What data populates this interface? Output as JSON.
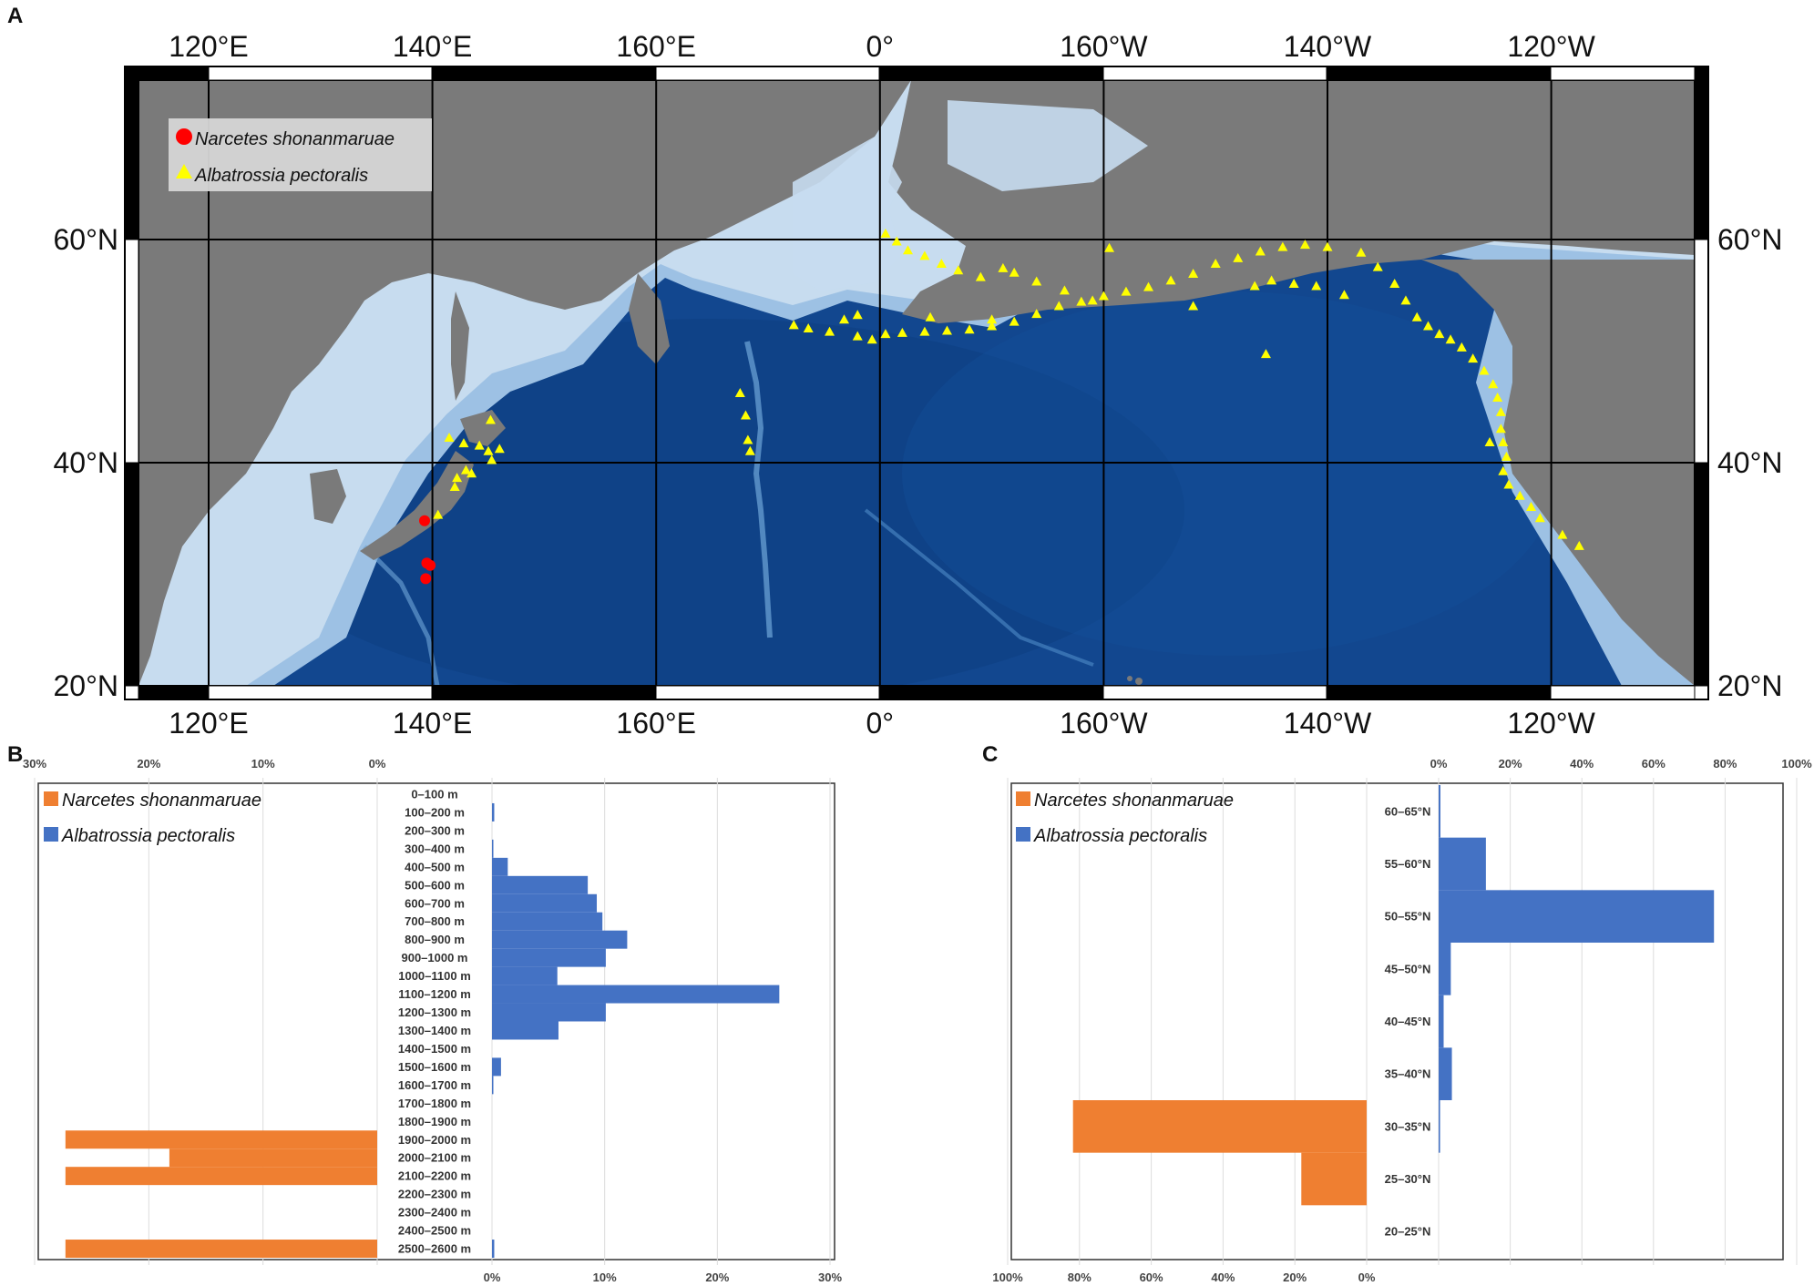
{
  "panels": {
    "a": "A",
    "b": "B",
    "c": "C"
  },
  "colors": {
    "land": "#7a7a7a",
    "ocean_deep": "#12478f",
    "ocean_shelf": "#c7dcef",
    "narcetes": "#ef7f31",
    "albatrossia": "#4472c4",
    "narcetes_map": "#ff0000",
    "albatrossia_map": "#ffff00"
  },
  "chart_data": [
    {
      "type": "map",
      "panel": "A",
      "x_tick_labels": [
        "120°E",
        "140°E",
        "160°E",
        "0°",
        "160°W",
        "140°W",
        "120°W"
      ],
      "y_tick_labels": [
        "60°N",
        "40°N",
        "20°N"
      ],
      "legend": [
        {
          "name": "Narcetes shonanmaruae",
          "marker": "circle",
          "color": "#ff0000"
        },
        {
          "name": "Albatrossia pectoralis",
          "marker": "triangle",
          "color": "#ffff00"
        }
      ],
      "narcetes_points": [
        [
          139.3,
          34.8
        ],
        [
          139.5,
          31.0
        ],
        [
          139.8,
          30.8
        ],
        [
          139.4,
          29.6
        ]
      ],
      "albatrossia_points": [
        [
          141.5,
          42.2
        ],
        [
          142.8,
          41.7
        ],
        [
          144.2,
          41.5
        ],
        [
          145.0,
          41.0
        ],
        [
          146.0,
          41.2
        ],
        [
          145.3,
          40.2
        ],
        [
          143.0,
          39.3
        ],
        [
          142.2,
          38.6
        ],
        [
          142.0,
          37.8
        ],
        [
          143.5,
          39.0
        ],
        [
          140.5,
          35.3
        ],
        [
          145.2,
          43.8
        ],
        [
          167.5,
          46.2
        ],
        [
          168.0,
          44.2
        ],
        [
          168.2,
          42.0
        ],
        [
          168.4,
          41.0
        ],
        [
          172.3,
          52.3
        ],
        [
          173.6,
          52.0
        ],
        [
          175.5,
          51.7
        ],
        [
          176.8,
          52.8
        ],
        [
          178.0,
          51.3
        ],
        [
          179.3,
          51.0
        ],
        [
          178.0,
          53.2
        ],
        [
          -179.5,
          51.5
        ],
        [
          -178.0,
          51.6
        ],
        [
          -176.0,
          51.7
        ],
        [
          -174.0,
          51.8
        ],
        [
          -172.0,
          51.9
        ],
        [
          -170.0,
          52.2
        ],
        [
          -168.0,
          52.6
        ],
        [
          -166.0,
          53.3
        ],
        [
          -164.0,
          54.0
        ],
        [
          -162.0,
          54.4
        ],
        [
          -160.0,
          54.9
        ],
        [
          -158.0,
          55.3
        ],
        [
          -156.0,
          55.7
        ],
        [
          -154.0,
          56.3
        ],
        [
          -152.0,
          56.9
        ],
        [
          -150.0,
          57.8
        ],
        [
          -148.0,
          58.3
        ],
        [
          -146.0,
          58.9
        ],
        [
          -144.0,
          59.3
        ],
        [
          -142.0,
          59.5
        ],
        [
          -140.0,
          59.3
        ],
        [
          -179.5,
          60.5
        ],
        [
          -178.5,
          59.8
        ],
        [
          -177.5,
          59.0
        ],
        [
          -176.0,
          58.5
        ],
        [
          -174.5,
          57.8
        ],
        [
          -173.0,
          57.2
        ],
        [
          -171.0,
          56.6
        ],
        [
          -169.0,
          57.4
        ],
        [
          -168.0,
          57.0
        ],
        [
          -166.0,
          56.2
        ],
        [
          -163.5,
          55.4
        ],
        [
          -159.5,
          59.2
        ],
        [
          -161.0,
          54.5
        ],
        [
          -175.5,
          53.0
        ],
        [
          -170.0,
          52.8
        ],
        [
          -152.0,
          54.0
        ],
        [
          -143.0,
          56.0
        ],
        [
          -141.0,
          55.8
        ],
        [
          -138.5,
          55.0
        ],
        [
          -145.0,
          56.3
        ],
        [
          -146.5,
          55.8
        ],
        [
          -145.5,
          49.7
        ],
        [
          -137.0,
          58.8
        ],
        [
          -135.5,
          57.5
        ],
        [
          -134.0,
          56.0
        ],
        [
          -133.0,
          54.5
        ],
        [
          -132.0,
          53.0
        ],
        [
          -131.0,
          52.2
        ],
        [
          -130.0,
          51.5
        ],
        [
          -129.0,
          51.0
        ],
        [
          -128.0,
          50.3
        ],
        [
          -127.0,
          49.3
        ],
        [
          -126.0,
          48.2
        ],
        [
          -125.2,
          47.0
        ],
        [
          -124.8,
          45.8
        ],
        [
          -124.5,
          44.5
        ],
        [
          -124.5,
          43.0
        ],
        [
          -124.3,
          41.8
        ],
        [
          -124.0,
          40.5
        ],
        [
          -124.3,
          39.2
        ],
        [
          -123.8,
          38.0
        ],
        [
          -122.8,
          37.0
        ],
        [
          -121.8,
          36.0
        ],
        [
          -121.0,
          35.0
        ],
        [
          -119.0,
          33.5
        ],
        [
          -117.5,
          32.5
        ],
        [
          -125.5,
          41.8
        ]
      ]
    },
    {
      "type": "bar",
      "panel": "B",
      "orientation": "horizontal",
      "categories": [
        "0–100 m",
        "100–200 m",
        "200–300 m",
        "300–400 m",
        "400–500 m",
        "500–600 m",
        "600–700 m",
        "700–800 m",
        "800–900 m",
        "900–1000 m",
        "1000–1100 m",
        "1100–1200 m",
        "1200–1300 m",
        "1300–1400 m",
        "1400–1500 m",
        "1500–1600 m",
        "1600–1700 m",
        "1700–1800 m",
        "1800–1900 m",
        "1900–2000 m",
        "2000–2100 m",
        "2100–2200 m",
        "2200–2300 m",
        "2300–2400 m",
        "2400–2500 m",
        "2500–2600 m"
      ],
      "series": [
        {
          "name": "Narcetes shonanmaruae",
          "values": [
            0,
            0,
            0,
            0,
            0,
            0,
            0,
            0,
            0,
            0,
            0,
            0,
            0,
            0,
            0,
            0,
            0,
            0,
            0,
            27.3,
            18.2,
            27.3,
            0,
            0,
            0,
            27.3
          ]
        },
        {
          "name": "Albatrossia pectoralis",
          "values": [
            0,
            0.2,
            0,
            0.1,
            1.4,
            8.5,
            9.3,
            9.8,
            12.0,
            10.1,
            5.8,
            25.5,
            10.1,
            5.9,
            0,
            0.8,
            0.1,
            0,
            0,
            0,
            0,
            0,
            0,
            0,
            0,
            0.2
          ]
        }
      ],
      "left_ticks": [
        "30%",
        "20%",
        "10%",
        "0%"
      ],
      "right_ticks": [
        "0%",
        "10%",
        "20%",
        "30%"
      ],
      "xlim": [
        0,
        30
      ]
    },
    {
      "type": "bar",
      "panel": "C",
      "orientation": "horizontal",
      "categories": [
        "60–65°N",
        "55–60°N",
        "50–55°N",
        "45–50°N",
        "40–45°N",
        "35–40°N",
        "30–35°N",
        "25–30°N",
        "20–25°N"
      ],
      "series": [
        {
          "name": "Narcetes shonanmaruae",
          "values": [
            0,
            0,
            0,
            0,
            0,
            0,
            81.8,
            18.2,
            0
          ]
        },
        {
          "name": "Albatrossia pectoralis",
          "values": [
            0.5,
            13.2,
            76.9,
            3.4,
            1.4,
            3.7,
            0.4,
            0,
            0
          ]
        }
      ],
      "left_ticks": [
        "100%",
        "80%",
        "60%",
        "40%",
        "20%",
        "0%"
      ],
      "right_ticks": [
        "0%",
        "20%",
        "40%",
        "60%",
        "80%",
        "100%"
      ],
      "xlim": [
        0,
        100
      ]
    }
  ]
}
